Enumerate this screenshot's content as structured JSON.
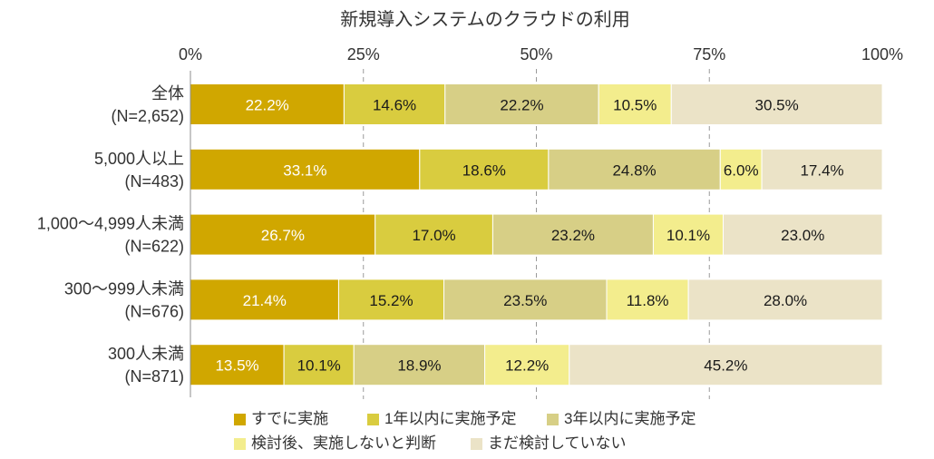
{
  "chart_data": {
    "type": "bar",
    "orientation": "horizontal",
    "stacking": "percent",
    "title": "新規導入システムのクラウドの利用",
    "xlabel": "",
    "ylabel": "",
    "xlim": [
      0,
      100
    ],
    "x_axis_position": "top",
    "x_tick_values": [
      0,
      25,
      50,
      75,
      100
    ],
    "x_tick_labels": [
      "0%",
      "25%",
      "50%",
      "75%",
      "100%"
    ],
    "grid": true,
    "legend_position": "bottom",
    "categories": [
      "全体",
      "5,000人以上",
      "1,000～4,999人未満",
      "300～999人未満",
      "300人未満"
    ],
    "category_sample_sizes": [
      "(N=2,652)",
      "(N=483)",
      "(N=622)",
      "(N=676)",
      "(N=871)"
    ],
    "series": [
      {
        "name": "すでに実施",
        "color": "#D0A700",
        "label_color": "#FFFFFF",
        "values": [
          22.2,
          33.1,
          26.7,
          21.4,
          13.5
        ],
        "labels": [
          "22.2%",
          "33.1%",
          "26.7%",
          "21.4%",
          "13.5%"
        ]
      },
      {
        "name": "1年以内に実施予定",
        "color": "#D9CC3F",
        "label_color": "#1A1A1A",
        "values": [
          14.6,
          18.6,
          17.0,
          15.2,
          10.1
        ],
        "labels": [
          "14.6%",
          "18.6%",
          "17.0%",
          "15.2%",
          "10.1%"
        ]
      },
      {
        "name": "3年以内に実施予定",
        "color": "#D7CF86",
        "label_color": "#1A1A1A",
        "values": [
          22.2,
          24.8,
          23.2,
          23.5,
          18.9
        ],
        "labels": [
          "22.2%",
          "24.8%",
          "23.2%",
          "23.5%",
          "18.9%"
        ]
      },
      {
        "name": "検討後、実施しないと判断",
        "color": "#F3ED8D",
        "label_color": "#1A1A1A",
        "values": [
          10.5,
          6.0,
          10.1,
          11.8,
          12.2
        ],
        "labels": [
          "10.5%",
          "6.0%",
          "10.1%",
          "11.8%",
          "12.2%"
        ]
      },
      {
        "name": "まだ検討していない",
        "color": "#EBE3C7",
        "label_color": "#1A1A1A",
        "values": [
          30.5,
          17.4,
          23.0,
          28.0,
          45.2
        ],
        "labels": [
          "30.5%",
          "17.4%",
          "23.0%",
          "28.0%",
          "45.2%"
        ]
      }
    ]
  }
}
